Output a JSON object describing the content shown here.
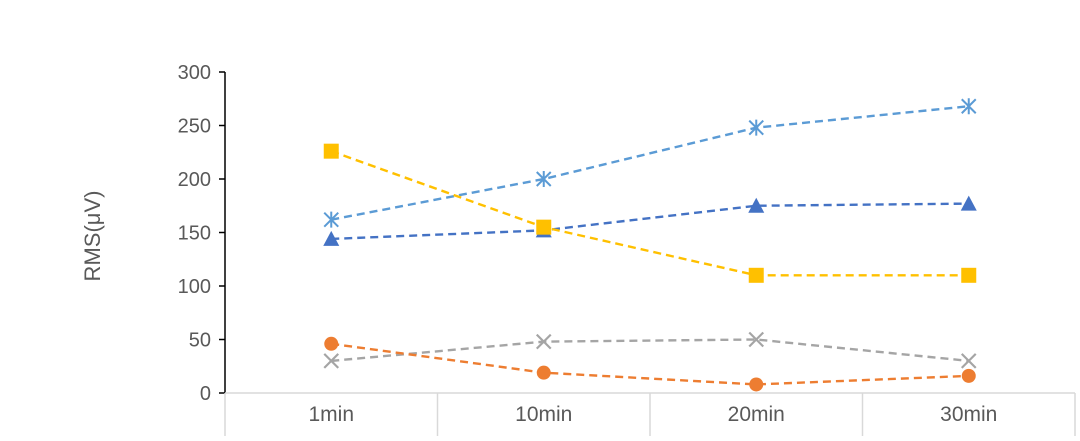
{
  "chart_data": {
    "type": "line",
    "title": "",
    "xlabel": "",
    "ylabel": "RMS(μV)",
    "categories": [
      "1min",
      "10min",
      "20min",
      "30min"
    ],
    "ylim": [
      0,
      300
    ],
    "yticks": [
      0,
      50,
      100,
      150,
      200,
      250,
      300
    ],
    "grid": false,
    "legend": "none",
    "line_style": "dashed",
    "series": [
      {
        "marker": "asterisk",
        "color": "#5B9BD5",
        "values": [
          162,
          200,
          248,
          268
        ]
      },
      {
        "marker": "triangle",
        "color": "#4472C4",
        "values": [
          144,
          152,
          175,
          177
        ]
      },
      {
        "marker": "square",
        "color": "#FFC000",
        "values": [
          226,
          155,
          110,
          110
        ]
      },
      {
        "marker": "cross",
        "color": "#A5A5A5",
        "values": [
          30,
          48,
          50,
          30
        ]
      },
      {
        "marker": "circle",
        "color": "#ED7D31",
        "values": [
          46,
          19,
          8,
          16
        ]
      }
    ]
  }
}
